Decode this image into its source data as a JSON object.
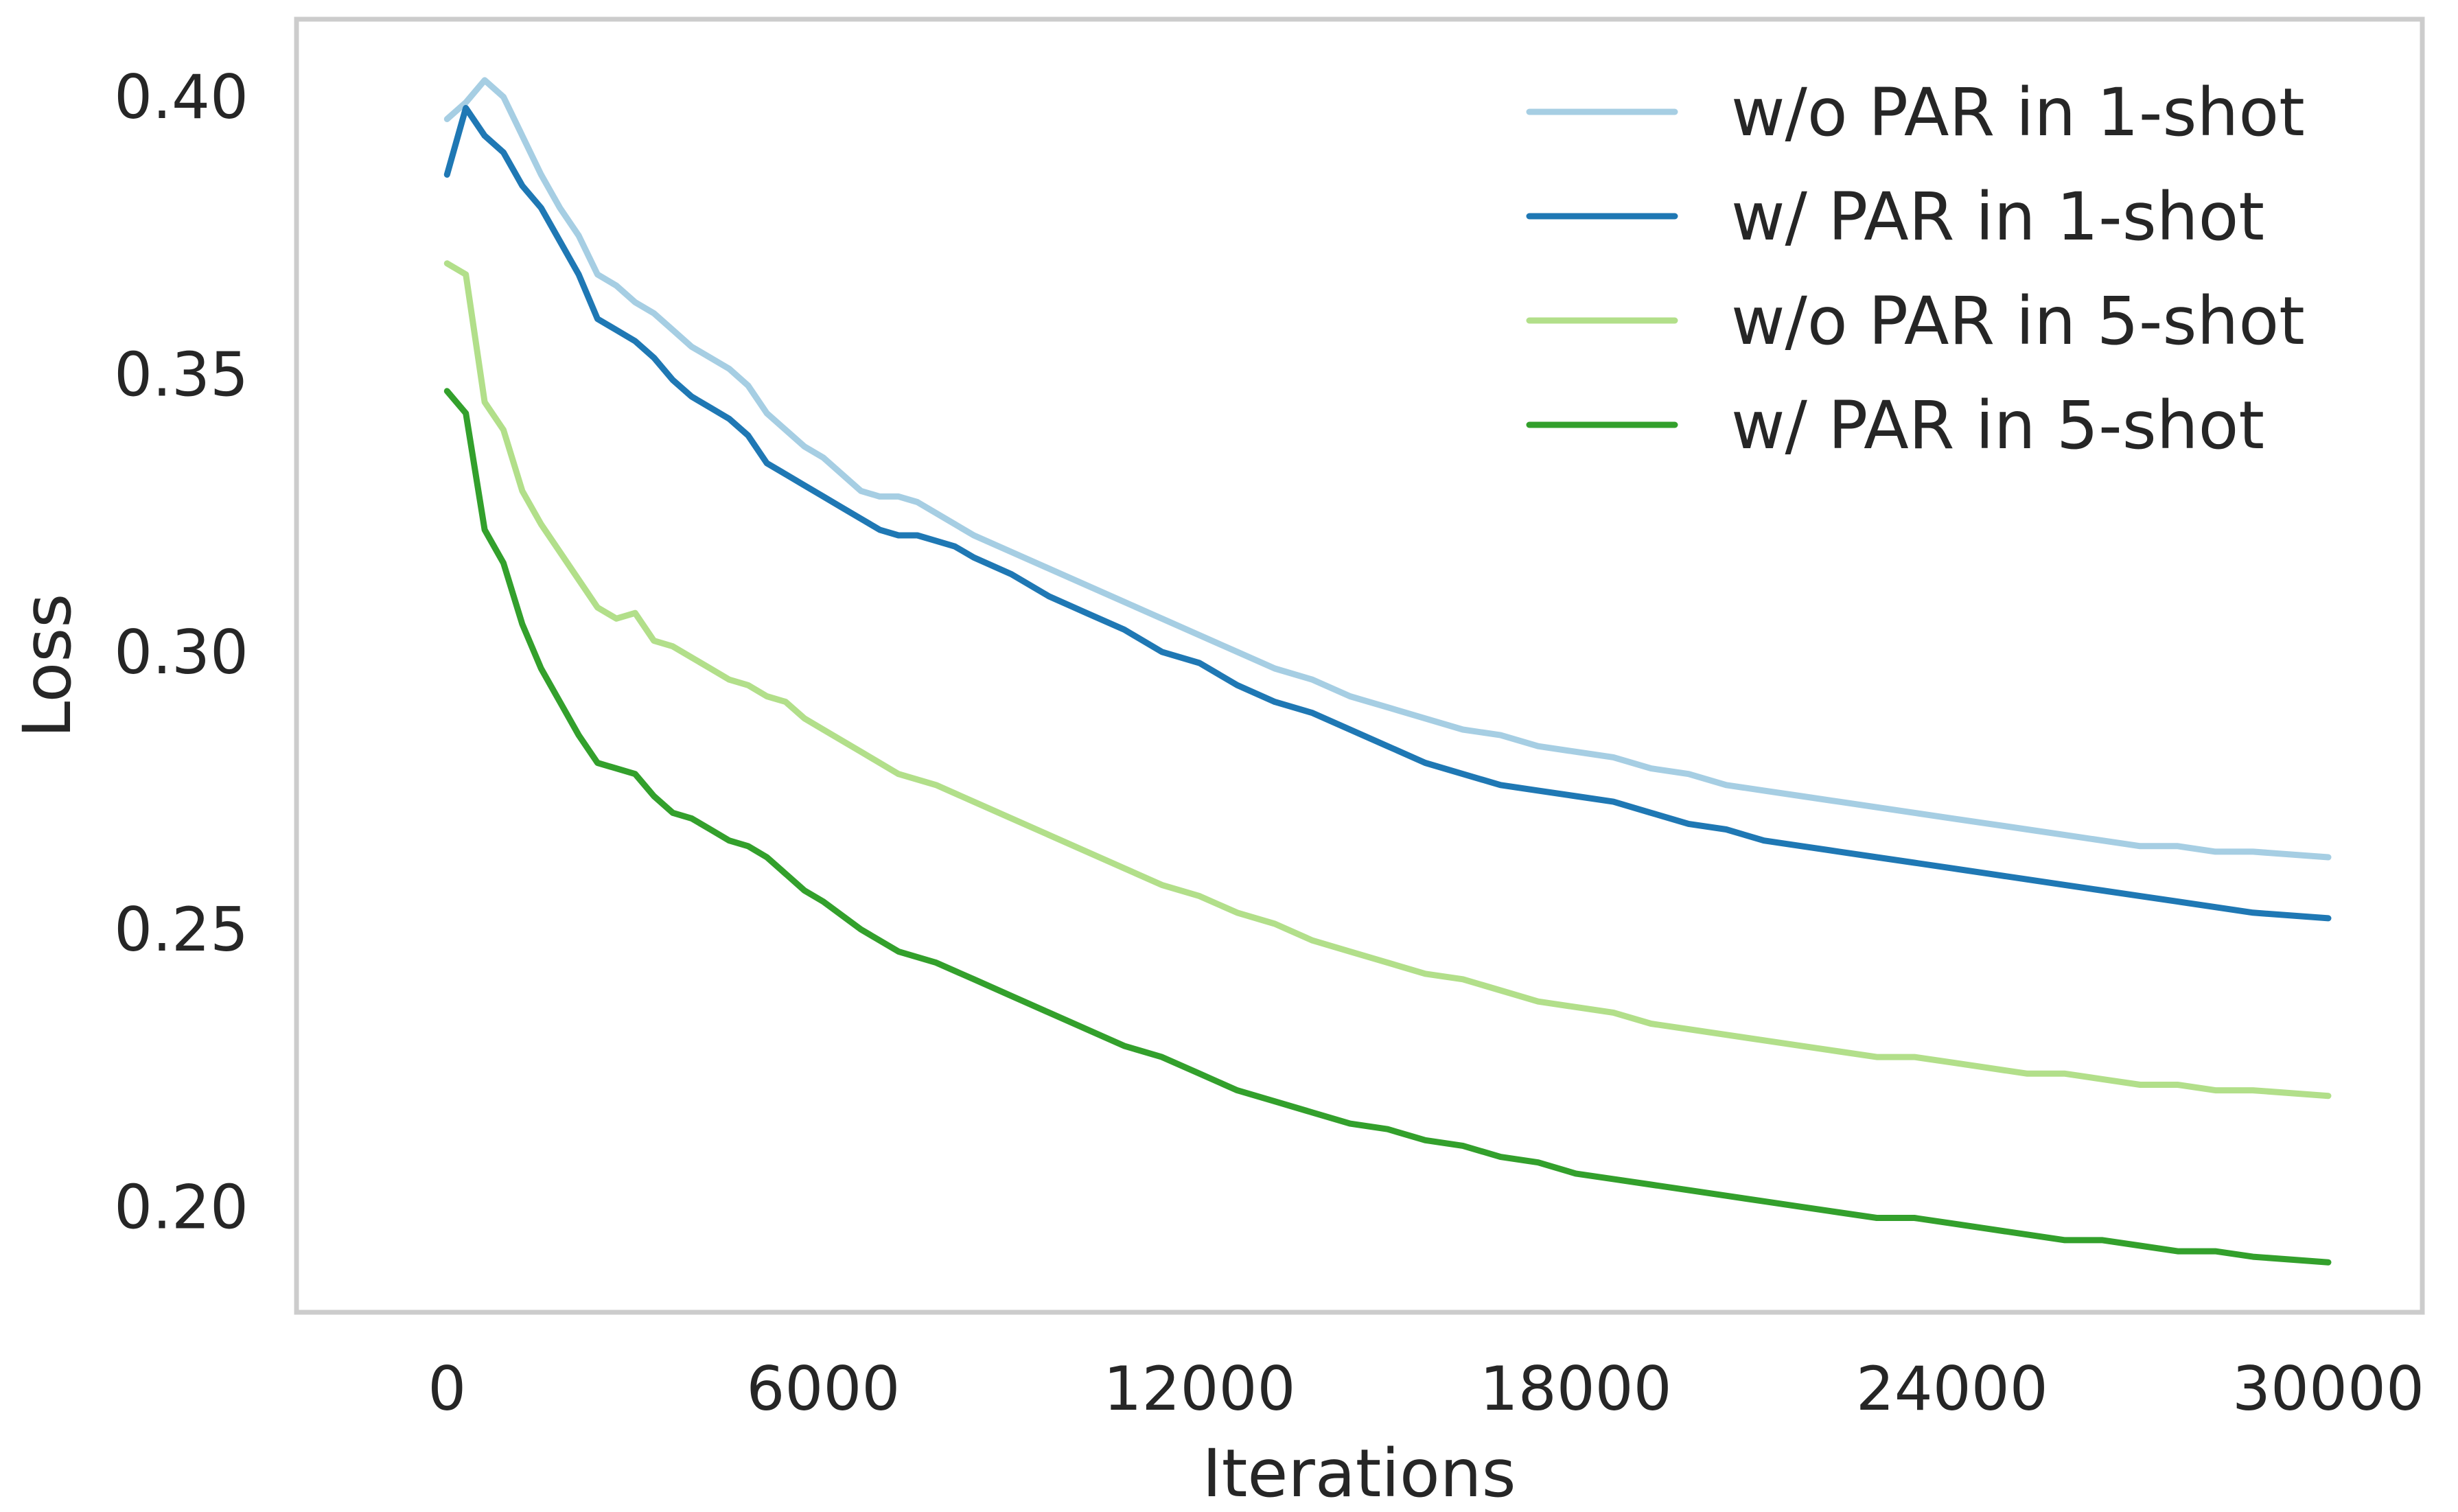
{
  "chart_data": {
    "type": "line",
    "title": "",
    "xlabel": "Iterations",
    "ylabel": "Loss",
    "xlim": [
      -2400,
      31500
    ],
    "ylim": [
      0.181,
      0.414
    ],
    "xticks": [
      0,
      6000,
      12000,
      18000,
      24000,
      30000
    ],
    "xtick_labels": [
      "0",
      "6000",
      "12000",
      "18000",
      "24000",
      "30000"
    ],
    "yticks": [
      0.2,
      0.25,
      0.3,
      0.35,
      0.4
    ],
    "ytick_labels": [
      "0.20",
      "0.25",
      "0.30",
      "0.35",
      "0.40"
    ],
    "grid": false,
    "legend_position": "top-right",
    "series": [
      {
        "name": "w/o PAR in 1-shot",
        "color": "#a6cee3",
        "points": [
          [
            0,
            0.396
          ],
          [
            300,
            0.399
          ],
          [
            600,
            0.403
          ],
          [
            900,
            0.4
          ],
          [
            1200,
            0.393
          ],
          [
            1500,
            0.386
          ],
          [
            1800,
            0.38
          ],
          [
            2100,
            0.375
          ],
          [
            2400,
            0.368
          ],
          [
            2700,
            0.366
          ],
          [
            3000,
            0.363
          ],
          [
            3300,
            0.361
          ],
          [
            3600,
            0.358
          ],
          [
            3900,
            0.355
          ],
          [
            4200,
            0.353
          ],
          [
            4500,
            0.351
          ],
          [
            4800,
            0.348
          ],
          [
            5100,
            0.343
          ],
          [
            5400,
            0.34
          ],
          [
            5700,
            0.337
          ],
          [
            6000,
            0.335
          ],
          [
            6300,
            0.332
          ],
          [
            6600,
            0.329
          ],
          [
            6900,
            0.328
          ],
          [
            7200,
            0.328
          ],
          [
            7500,
            0.327
          ],
          [
            7800,
            0.325
          ],
          [
            8100,
            0.323
          ],
          [
            8400,
            0.321
          ],
          [
            9000,
            0.318
          ],
          [
            9600,
            0.315
          ],
          [
            10200,
            0.312
          ],
          [
            10800,
            0.309
          ],
          [
            11400,
            0.306
          ],
          [
            12000,
            0.303
          ],
          [
            12600,
            0.3
          ],
          [
            13200,
            0.297
          ],
          [
            13800,
            0.295
          ],
          [
            14400,
            0.292
          ],
          [
            15000,
            0.29
          ],
          [
            15600,
            0.288
          ],
          [
            16200,
            0.286
          ],
          [
            16800,
            0.285
          ],
          [
            17400,
            0.283
          ],
          [
            18000,
            0.282
          ],
          [
            18600,
            0.281
          ],
          [
            19200,
            0.279
          ],
          [
            19800,
            0.278
          ],
          [
            20400,
            0.276
          ],
          [
            21000,
            0.275
          ],
          [
            21600,
            0.274
          ],
          [
            22200,
            0.273
          ],
          [
            22800,
            0.272
          ],
          [
            23400,
            0.271
          ],
          [
            24000,
            0.27
          ],
          [
            24600,
            0.269
          ],
          [
            25200,
            0.268
          ],
          [
            25800,
            0.267
          ],
          [
            26400,
            0.266
          ],
          [
            27000,
            0.265
          ],
          [
            27600,
            0.265
          ],
          [
            28200,
            0.264
          ],
          [
            28800,
            0.264
          ],
          [
            30000,
            0.263
          ]
        ]
      },
      {
        "name": "w/ PAR in 1-shot",
        "color": "#1f78b4",
        "points": [
          [
            0,
            0.386
          ],
          [
            300,
            0.398
          ],
          [
            600,
            0.393
          ],
          [
            900,
            0.39
          ],
          [
            1200,
            0.384
          ],
          [
            1500,
            0.38
          ],
          [
            1800,
            0.374
          ],
          [
            2100,
            0.368
          ],
          [
            2400,
            0.36
          ],
          [
            2700,
            0.358
          ],
          [
            3000,
            0.356
          ],
          [
            3300,
            0.353
          ],
          [
            3600,
            0.349
          ],
          [
            3900,
            0.346
          ],
          [
            4200,
            0.344
          ],
          [
            4500,
            0.342
          ],
          [
            4800,
            0.339
          ],
          [
            5100,
            0.334
          ],
          [
            5400,
            0.332
          ],
          [
            5700,
            0.33
          ],
          [
            6000,
            0.328
          ],
          [
            6300,
            0.326
          ],
          [
            6600,
            0.324
          ],
          [
            6900,
            0.322
          ],
          [
            7200,
            0.321
          ],
          [
            7500,
            0.321
          ],
          [
            7800,
            0.32
          ],
          [
            8100,
            0.319
          ],
          [
            8400,
            0.317
          ],
          [
            9000,
            0.314
          ],
          [
            9600,
            0.31
          ],
          [
            10200,
            0.307
          ],
          [
            10800,
            0.304
          ],
          [
            11400,
            0.3
          ],
          [
            12000,
            0.298
          ],
          [
            12600,
            0.294
          ],
          [
            13200,
            0.291
          ],
          [
            13800,
            0.289
          ],
          [
            14400,
            0.286
          ],
          [
            15000,
            0.283
          ],
          [
            15600,
            0.28
          ],
          [
            16200,
            0.278
          ],
          [
            16800,
            0.276
          ],
          [
            17400,
            0.275
          ],
          [
            18000,
            0.274
          ],
          [
            18600,
            0.273
          ],
          [
            19200,
            0.271
          ],
          [
            19800,
            0.269
          ],
          [
            20400,
            0.268
          ],
          [
            21000,
            0.266
          ],
          [
            21600,
            0.265
          ],
          [
            22200,
            0.264
          ],
          [
            22800,
            0.263
          ],
          [
            23400,
            0.262
          ],
          [
            24000,
            0.261
          ],
          [
            24600,
            0.26
          ],
          [
            25200,
            0.259
          ],
          [
            25800,
            0.258
          ],
          [
            26400,
            0.257
          ],
          [
            27000,
            0.256
          ],
          [
            27600,
            0.255
          ],
          [
            28200,
            0.254
          ],
          [
            28800,
            0.253
          ],
          [
            30000,
            0.252
          ]
        ]
      },
      {
        "name": "w/o PAR in 5-shot",
        "color": "#b2df8a",
        "points": [
          [
            0,
            0.37
          ],
          [
            300,
            0.368
          ],
          [
            600,
            0.345
          ],
          [
            900,
            0.34
          ],
          [
            1200,
            0.329
          ],
          [
            1500,
            0.323
          ],
          [
            1800,
            0.318
          ],
          [
            2100,
            0.313
          ],
          [
            2400,
            0.308
          ],
          [
            2700,
            0.306
          ],
          [
            3000,
            0.307
          ],
          [
            3300,
            0.302
          ],
          [
            3600,
            0.301
          ],
          [
            3900,
            0.299
          ],
          [
            4200,
            0.297
          ],
          [
            4500,
            0.295
          ],
          [
            4800,
            0.294
          ],
          [
            5100,
            0.292
          ],
          [
            5400,
            0.291
          ],
          [
            5700,
            0.288
          ],
          [
            6000,
            0.286
          ],
          [
            6600,
            0.282
          ],
          [
            7200,
            0.278
          ],
          [
            7800,
            0.276
          ],
          [
            8400,
            0.273
          ],
          [
            9000,
            0.27
          ],
          [
            9600,
            0.267
          ],
          [
            10200,
            0.264
          ],
          [
            10800,
            0.261
          ],
          [
            11400,
            0.258
          ],
          [
            12000,
            0.256
          ],
          [
            12600,
            0.253
          ],
          [
            13200,
            0.251
          ],
          [
            13800,
            0.248
          ],
          [
            14400,
            0.246
          ],
          [
            15000,
            0.244
          ],
          [
            15600,
            0.242
          ],
          [
            16200,
            0.241
          ],
          [
            16800,
            0.239
          ],
          [
            17400,
            0.237
          ],
          [
            18000,
            0.236
          ],
          [
            18600,
            0.235
          ],
          [
            19200,
            0.233
          ],
          [
            19800,
            0.232
          ],
          [
            20400,
            0.231
          ],
          [
            21000,
            0.23
          ],
          [
            21600,
            0.229
          ],
          [
            22200,
            0.228
          ],
          [
            22800,
            0.227
          ],
          [
            23400,
            0.227
          ],
          [
            24000,
            0.226
          ],
          [
            24600,
            0.225
          ],
          [
            25200,
            0.224
          ],
          [
            25800,
            0.224
          ],
          [
            26400,
            0.223
          ],
          [
            27000,
            0.222
          ],
          [
            27600,
            0.222
          ],
          [
            28200,
            0.221
          ],
          [
            28800,
            0.221
          ],
          [
            30000,
            0.22
          ]
        ]
      },
      {
        "name": "w/ PAR in 5-shot",
        "color": "#33a02c",
        "points": [
          [
            0,
            0.347
          ],
          [
            300,
            0.343
          ],
          [
            600,
            0.322
          ],
          [
            900,
            0.316
          ],
          [
            1200,
            0.305
          ],
          [
            1500,
            0.297
          ],
          [
            1800,
            0.291
          ],
          [
            2100,
            0.285
          ],
          [
            2400,
            0.28
          ],
          [
            2700,
            0.279
          ],
          [
            3000,
            0.278
          ],
          [
            3300,
            0.274
          ],
          [
            3600,
            0.271
          ],
          [
            3900,
            0.27
          ],
          [
            4200,
            0.268
          ],
          [
            4500,
            0.266
          ],
          [
            4800,
            0.265
          ],
          [
            5100,
            0.263
          ],
          [
            5400,
            0.26
          ],
          [
            5700,
            0.257
          ],
          [
            6000,
            0.255
          ],
          [
            6600,
            0.25
          ],
          [
            7200,
            0.246
          ],
          [
            7800,
            0.244
          ],
          [
            8400,
            0.241
          ],
          [
            9000,
            0.238
          ],
          [
            9600,
            0.235
          ],
          [
            10200,
            0.232
          ],
          [
            10800,
            0.229
          ],
          [
            11400,
            0.227
          ],
          [
            12000,
            0.224
          ],
          [
            12600,
            0.221
          ],
          [
            13200,
            0.219
          ],
          [
            13800,
            0.217
          ],
          [
            14400,
            0.215
          ],
          [
            15000,
            0.214
          ],
          [
            15600,
            0.212
          ],
          [
            16200,
            0.211
          ],
          [
            16800,
            0.209
          ],
          [
            17400,
            0.208
          ],
          [
            18000,
            0.206
          ],
          [
            18600,
            0.205
          ],
          [
            19200,
            0.204
          ],
          [
            19800,
            0.203
          ],
          [
            20400,
            0.202
          ],
          [
            21000,
            0.201
          ],
          [
            21600,
            0.2
          ],
          [
            22200,
            0.199
          ],
          [
            22800,
            0.198
          ],
          [
            23400,
            0.198
          ],
          [
            24000,
            0.197
          ],
          [
            24600,
            0.196
          ],
          [
            25200,
            0.195
          ],
          [
            25800,
            0.194
          ],
          [
            26400,
            0.194
          ],
          [
            27000,
            0.193
          ],
          [
            27600,
            0.192
          ],
          [
            28200,
            0.192
          ],
          [
            28800,
            0.191
          ],
          [
            30000,
            0.19
          ]
        ]
      }
    ]
  }
}
